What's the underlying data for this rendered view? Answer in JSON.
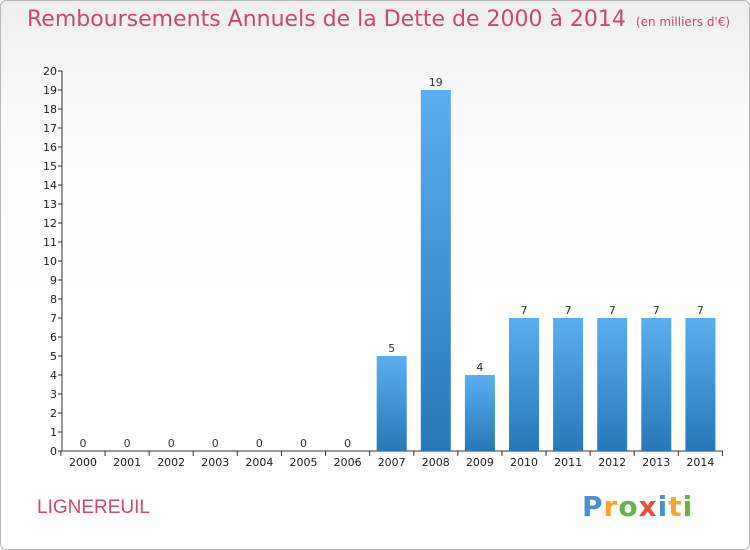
{
  "header": {
    "title": "Remboursements Annuels de la Dette de 2000 à 2014",
    "unit": "(en milliers d'€)"
  },
  "commune": "LIGNEREUIL",
  "brand": {
    "name": "Proxiti",
    "letters": [
      {
        "ch": "P",
        "color": "#4a8fd6"
      },
      {
        "ch": "r",
        "color": "#f0a830"
      },
      {
        "ch": "o",
        "color": "#6ab04c"
      },
      {
        "ch": "x",
        "color": "#e84c3d"
      },
      {
        "ch": "i",
        "color": "#4a8fd6"
      },
      {
        "ch": "t",
        "color": "#f0a830"
      },
      {
        "ch": "i",
        "color": "#6ab04c"
      }
    ]
  },
  "colors": {
    "title": "#c8496e",
    "bar_top": "#5aaef0",
    "bar_bottom": "#2878b8"
  },
  "chart_data": {
    "type": "bar",
    "title": "Remboursements Annuels de la Dette de 2000 à 2014",
    "subtitle": "(en milliers d'€)",
    "categories": [
      "2000",
      "2001",
      "2002",
      "2003",
      "2004",
      "2005",
      "2006",
      "2007",
      "2008",
      "2009",
      "2010",
      "2011",
      "2012",
      "2013",
      "2014"
    ],
    "values": [
      0,
      0,
      0,
      0,
      0,
      0,
      0,
      5,
      19,
      4,
      7,
      7,
      7,
      7,
      7
    ],
    "ylim": [
      0,
      20
    ],
    "yticks": [
      "0",
      "1",
      "2",
      "3",
      "4",
      "5",
      "6",
      "7",
      "8",
      "9",
      "10",
      "11",
      "12",
      "13",
      "14",
      "15",
      "16",
      "17",
      "18",
      "19",
      "20"
    ],
    "grid": false,
    "xlabel": "",
    "ylabel": ""
  }
}
